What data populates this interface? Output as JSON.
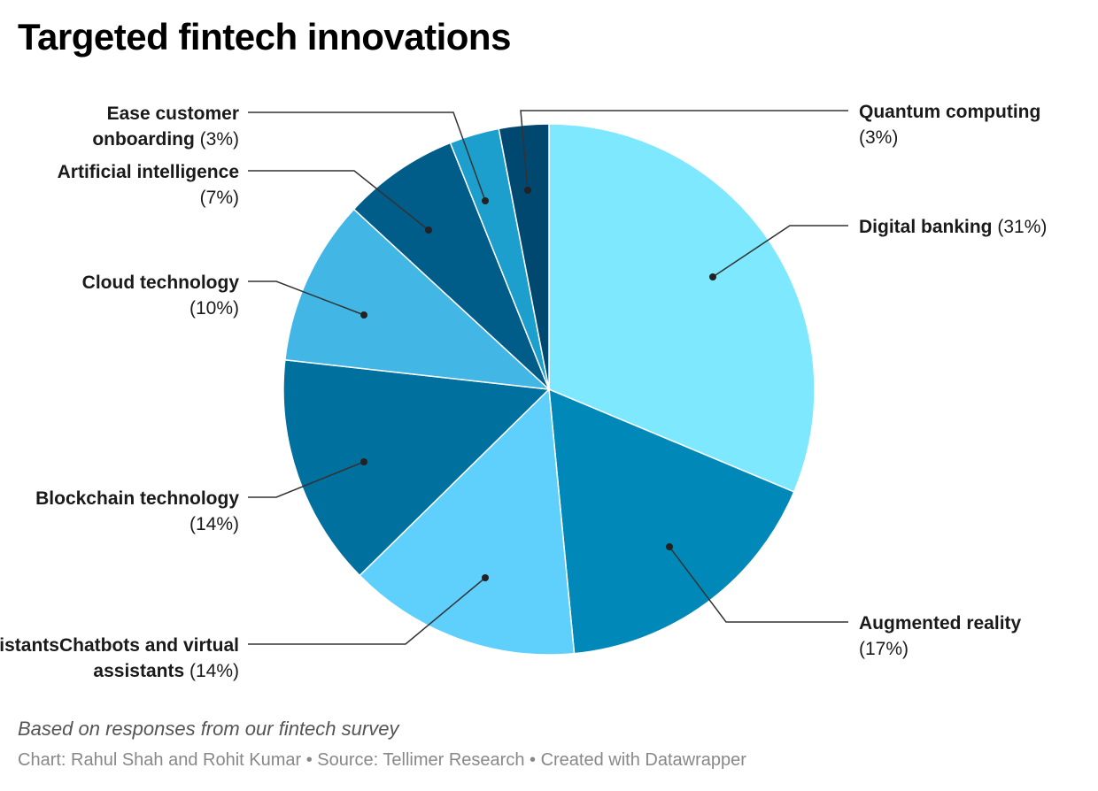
{
  "title": "Targeted fintech innovations",
  "notes": "Based on responses from our fintech survey",
  "footer": "Chart: Rahul Shah and Rohit Kumar • Source: Tellimer Research • Created with Datawrapper",
  "chart_data": {
    "type": "pie",
    "title": "Targeted fintech innovations",
    "slices": [
      {
        "label": "Digital banking",
        "value": 31,
        "value_label": "(31%)",
        "color": "#7de8ff"
      },
      {
        "label": "Augmented reality",
        "value": 17,
        "value_label": "(17%)",
        "color": "#0089b8"
      },
      {
        "label": "Chatbots and virtual assistants",
        "value": 14,
        "value_label": "(14%)",
        "color": "#5fcffc"
      },
      {
        "label": "Blockchain technology",
        "value": 14,
        "value_label": "(14%)",
        "color": "#00709f"
      },
      {
        "label": "Cloud technology",
        "value": 10,
        "value_label": "(10%)",
        "color": "#42b6e4"
      },
      {
        "label": "Artificial intelligence",
        "value": 7,
        "value_label": "(7%)",
        "color": "#005c88"
      },
      {
        "label": "Ease customer onboarding",
        "value": 3,
        "value_label": "(3%)",
        "color": "#1d9fce"
      },
      {
        "label": "Quantum computing",
        "value": 3,
        "value_label": "(3%)",
        "color": "#004870"
      }
    ]
  }
}
